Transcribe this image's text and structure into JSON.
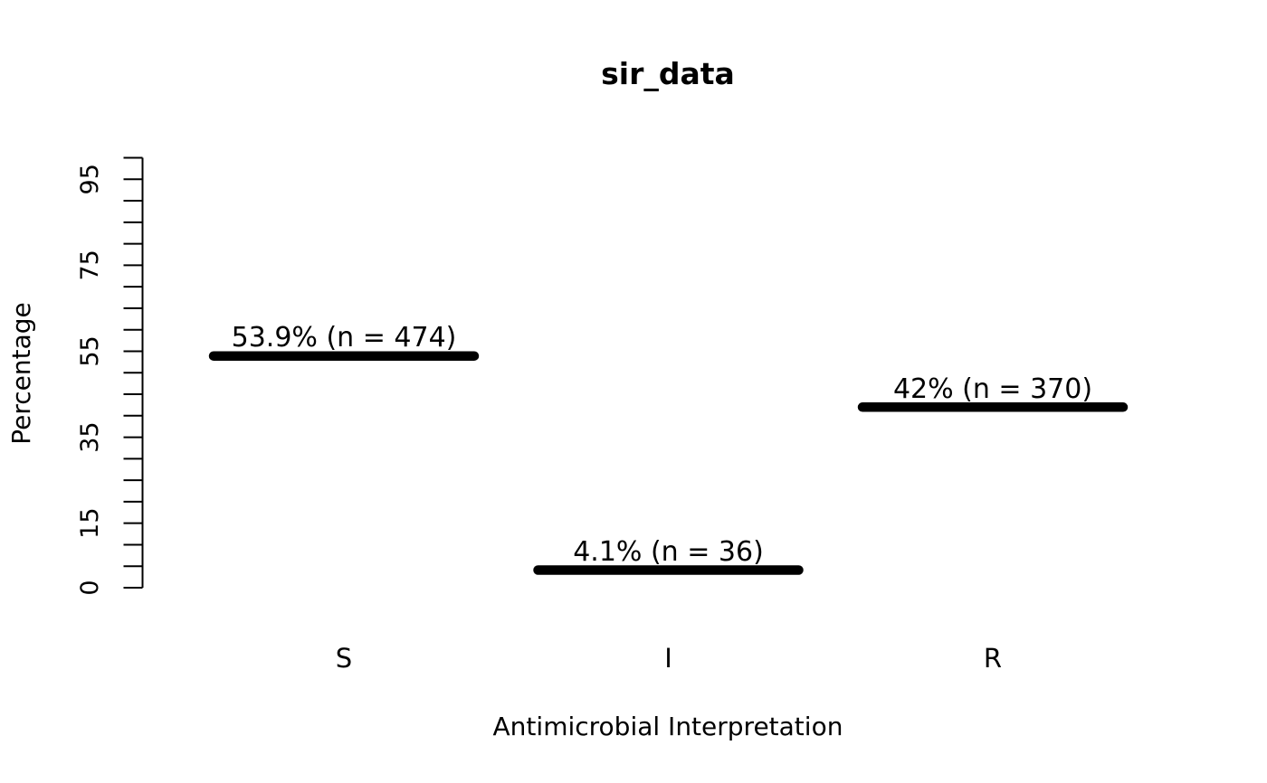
{
  "chart_data": {
    "type": "bar",
    "title": "sir_data",
    "xlabel": "Antimicrobial Interpretation",
    "ylabel": "Percentage",
    "categories": [
      "S",
      "I",
      "R"
    ],
    "values": [
      53.9,
      4.1,
      42
    ],
    "counts": [
      474,
      36,
      370
    ],
    "bar_labels": [
      "53.9% (n = 474)",
      "4.1% (n = 36)",
      "42% (n = 370)"
    ],
    "ylim": [
      0,
      100
    ],
    "ytick_step": 5,
    "ytick_labeled": [
      0,
      15,
      35,
      55,
      75,
      95
    ],
    "grid": false,
    "legend_position": "none",
    "bar_color": "#000000",
    "axis_color": "#000000",
    "background_color": "#ffffff",
    "bar_style": "thick-horizontal-segment"
  }
}
